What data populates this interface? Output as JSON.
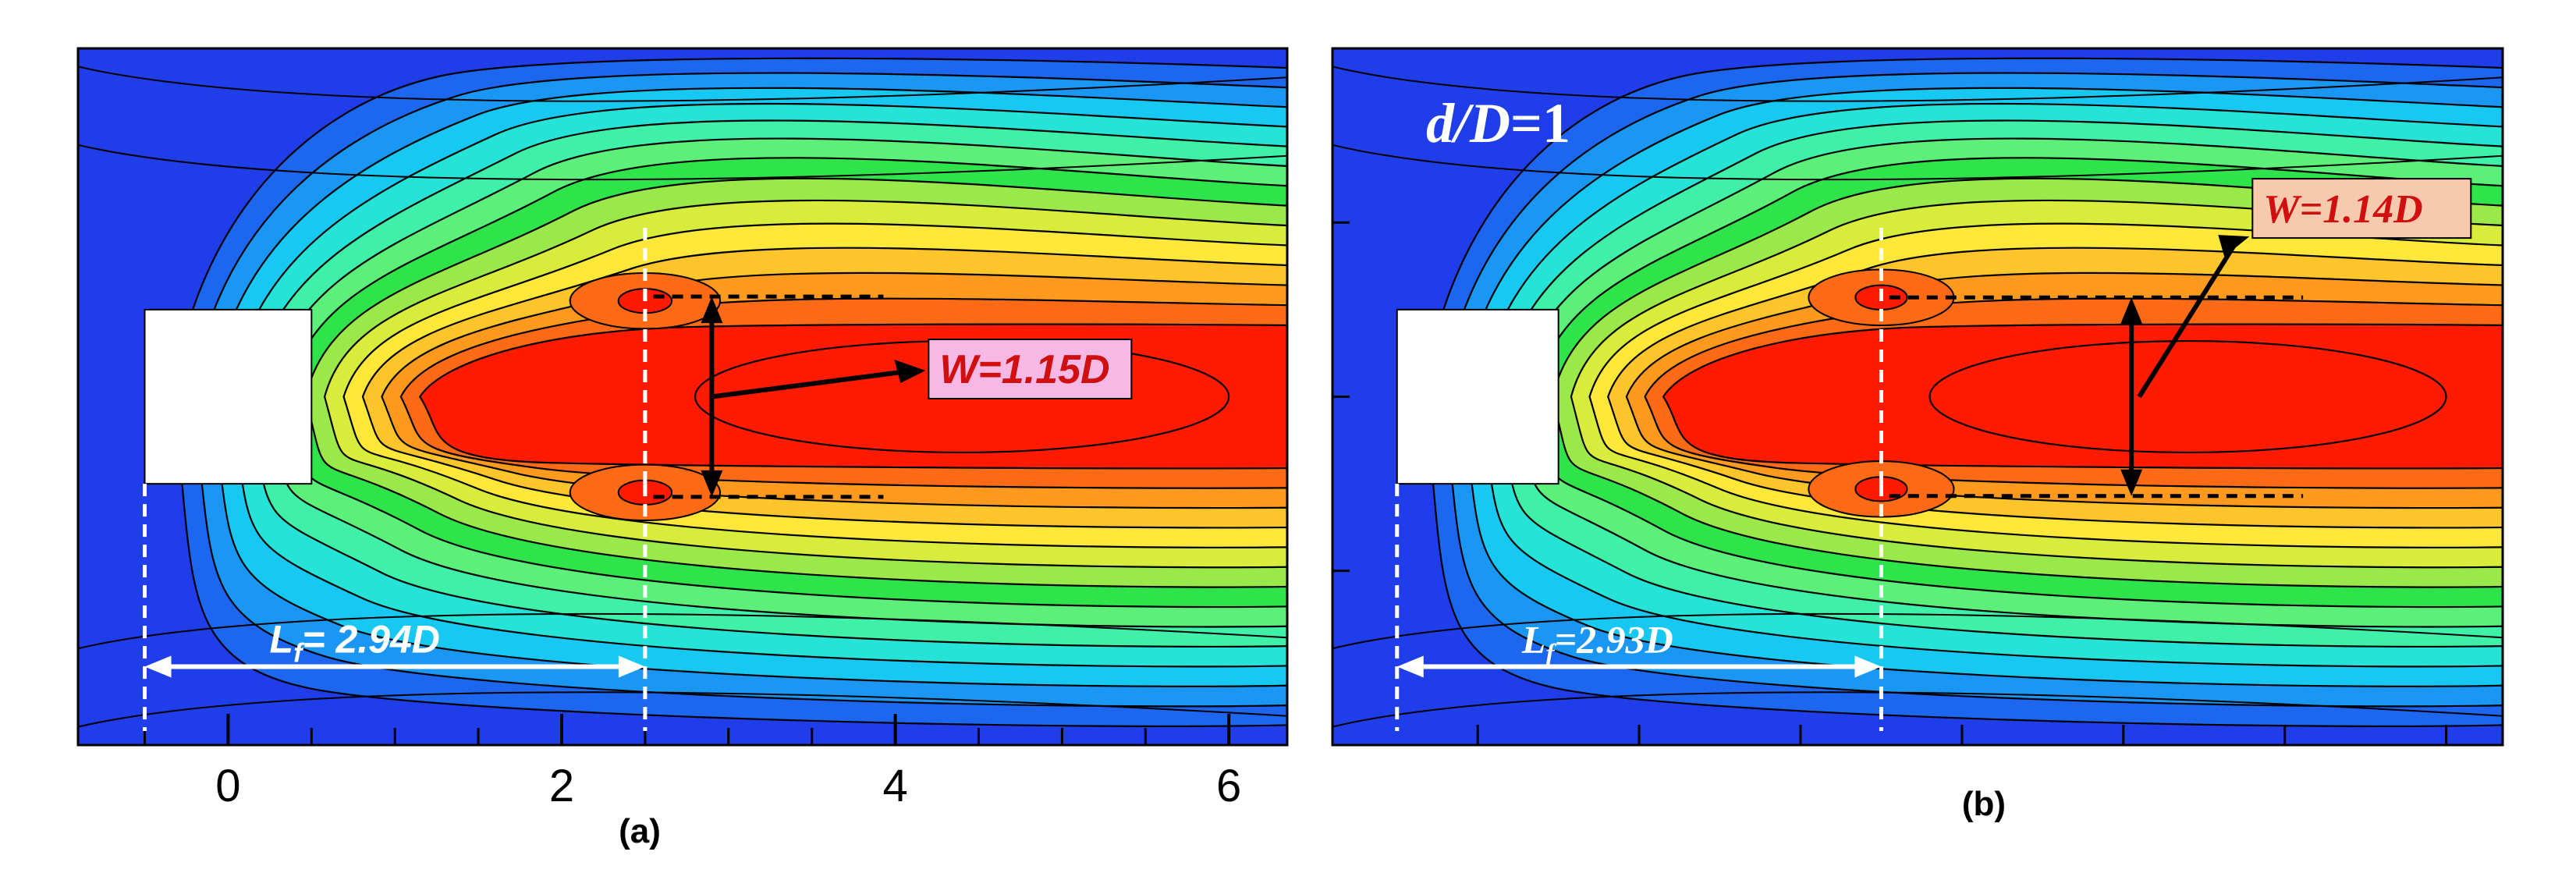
{
  "figure": {
    "panel_labels": [
      "(a)",
      "(b)"
    ],
    "colors": {
      "background_blue": "#1f3de8",
      "red_core": "#ff1a00",
      "frame": "#000000",
      "bluff_body": "#ffffff",
      "contour_line": "#000000",
      "annotation_red": "#d01010",
      "label_box_a": "#f7b8e6",
      "label_box_b": "#f7c9ad"
    },
    "colormap": [
      "#1f3de8",
      "#1c66f0",
      "#1a96f5",
      "#17c8f2",
      "#26e3d8",
      "#3ff0a8",
      "#5cf07a",
      "#2fe34b",
      "#9ae84a",
      "#d8ec3c",
      "#ffe83a",
      "#ffc52b",
      "#ff9a1f",
      "#ff6a16",
      "#ff1a00"
    ]
  },
  "chart_data": [
    {
      "type": "contour",
      "panel": "(a)",
      "title": "",
      "xlabel": "",
      "ylabel": "",
      "x_ticks": [
        0,
        2,
        4,
        6
      ],
      "x_tick_labels": [
        "0",
        "2",
        "4",
        "6"
      ],
      "xlim": [
        -0.9,
        6.35
      ],
      "ylim": [
        -2.0,
        2.0
      ],
      "bluff_body": {
        "x": [
          -0.5,
          0.5
        ],
        "y": [
          -0.5,
          0.5
        ]
      },
      "annotations": {
        "formation_length_text": "L",
        "formation_length_subscript": "f",
        "formation_length_value": "= 2.94D",
        "formation_length_start_x": -0.5,
        "formation_length_end_x": 2.5,
        "wake_width_label": "W=1.15D",
        "wake_width_x": 2.9,
        "wake_width_y": [
          -0.575,
          0.575
        ]
      },
      "recirculation_foci": [
        {
          "x": 2.5,
          "y": 0.55
        },
        {
          "x": 2.5,
          "y": -0.55
        }
      ]
    },
    {
      "type": "contour",
      "panel": "(b)",
      "title": "",
      "xlabel": "",
      "ylabel": "",
      "case_label_lhs": "d/D",
      "case_label_rhs": "=1",
      "xlim": [
        -0.9,
        6.35
      ],
      "ylim": [
        -2.0,
        2.0
      ],
      "bluff_body": {
        "x": [
          -0.5,
          0.5
        ],
        "y": [
          -0.5,
          0.5
        ]
      },
      "annotations": {
        "formation_length_text": "L",
        "formation_length_subscript": "f",
        "formation_length_value": "=2.93D",
        "formation_length_start_x": -0.5,
        "formation_length_end_x": 2.5,
        "wake_width_label": "W=1.14D",
        "wake_width_x": 4.05,
        "wake_width_y": [
          -0.57,
          0.57
        ]
      },
      "recirculation_foci": [
        {
          "x": 2.5,
          "y": 0.57
        },
        {
          "x": 2.5,
          "y": -0.53
        }
      ]
    }
  ]
}
